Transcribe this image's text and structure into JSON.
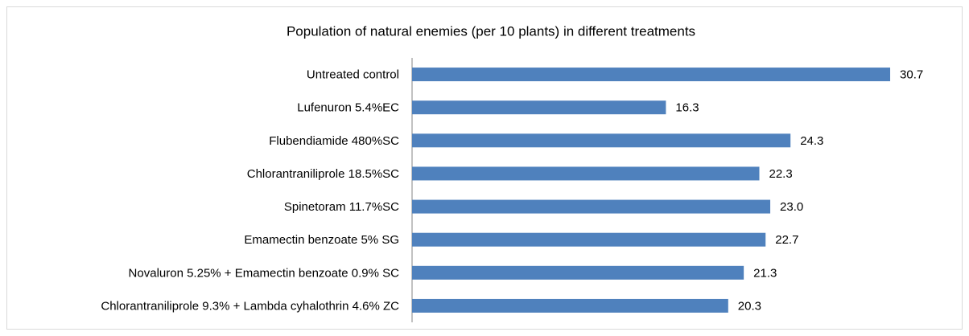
{
  "chart_data": {
    "type": "bar",
    "orientation": "horizontal",
    "title": "Population of natural enemies (per 10 plants) in different treatments",
    "categories": [
      "Untreated control",
      "Lufenuron 5.4%EC",
      "Flubendiamide 480%SC",
      "Chlorantraniliprole 18.5%SC",
      "Spinetoram 11.7%SC",
      "Emamectin benzoate 5% SG",
      "Novaluron 5.25% + Emamectin benzoate 0.9% SC",
      "Chlorantraniliprole 9.3% + Lambda cyhalothrin 4.6% ZC"
    ],
    "values": [
      30.7,
      16.3,
      24.3,
      22.3,
      23.0,
      22.7,
      21.3,
      20.3
    ],
    "value_labels": [
      "30.7",
      "16.3",
      "24.3",
      "22.3",
      "23.0",
      "22.7",
      "21.3",
      "20.3"
    ],
    "color": "#4f81bd"
  }
}
